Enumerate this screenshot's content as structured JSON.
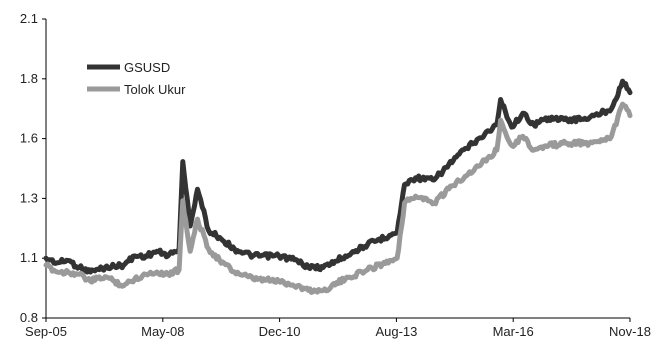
{
  "chart_data": {
    "type": "line",
    "title": "",
    "xlabel": "",
    "ylabel": "",
    "x_ticks": [
      "Sep-05",
      "May-08",
      "Dec-10",
      "Aug-13",
      "Mar-16",
      "Nov-18"
    ],
    "y_ticks": [
      "0.8",
      "1.1",
      "1.3",
      "1.6",
      "1.8",
      "2.1"
    ],
    "ylim": [
      0.8,
      2.1
    ],
    "xlim": [
      "2005-09",
      "2018-11"
    ],
    "grid": false,
    "legend_position": "top-left",
    "series": [
      {
        "name": "GSUSD",
        "color": "#333333",
        "points": [
          [
            "2005-09",
            1.06
          ],
          [
            "2005-12",
            1.04
          ],
          [
            "2006-03",
            1.05
          ],
          [
            "2006-06",
            1.02
          ],
          [
            "2006-09",
            1.0
          ],
          [
            "2007-01",
            1.02
          ],
          [
            "2007-06",
            1.03
          ],
          [
            "2007-09",
            1.07
          ],
          [
            "2007-12",
            1.07
          ],
          [
            "2008-03",
            1.09
          ],
          [
            "2008-06",
            1.07
          ],
          [
            "2008-09",
            1.1
          ],
          [
            "2008-10",
            1.48
          ],
          [
            "2008-12",
            1.2
          ],
          [
            "2009-02",
            1.36
          ],
          [
            "2009-05",
            1.18
          ],
          [
            "2009-08",
            1.15
          ],
          [
            "2009-12",
            1.1
          ],
          [
            "2010-05",
            1.07
          ],
          [
            "2010-12",
            1.07
          ],
          [
            "2011-05",
            1.05
          ],
          [
            "2011-08",
            1.02
          ],
          [
            "2011-12",
            1.02
          ],
          [
            "2012-06",
            1.07
          ],
          [
            "2012-12",
            1.12
          ],
          [
            "2013-06",
            1.16
          ],
          [
            "2013-08",
            1.17
          ],
          [
            "2013-10",
            1.38
          ],
          [
            "2014-01",
            1.41
          ],
          [
            "2014-06",
            1.4
          ],
          [
            "2014-12",
            1.5
          ],
          [
            "2015-06",
            1.58
          ],
          [
            "2015-11",
            1.64
          ],
          [
            "2015-12",
            1.75
          ],
          [
            "2016-03",
            1.63
          ],
          [
            "2016-06",
            1.69
          ],
          [
            "2016-09",
            1.64
          ],
          [
            "2017-01",
            1.67
          ],
          [
            "2017-06",
            1.66
          ],
          [
            "2017-12",
            1.67
          ],
          [
            "2018-06",
            1.71
          ],
          [
            "2018-09",
            1.83
          ],
          [
            "2018-11",
            1.78
          ]
        ]
      },
      {
        "name": "Tolok Ukur",
        "color": "#9a9a9a",
        "points": [
          [
            "2005-09",
            1.03
          ],
          [
            "2005-12",
            1.0
          ],
          [
            "2006-03",
            1.0
          ],
          [
            "2006-06",
            0.99
          ],
          [
            "2006-09",
            0.96
          ],
          [
            "2007-01",
            0.98
          ],
          [
            "2007-06",
            0.94
          ],
          [
            "2007-09",
            0.97
          ],
          [
            "2007-12",
            0.99
          ],
          [
            "2008-03",
            1.0
          ],
          [
            "2008-06",
            0.99
          ],
          [
            "2008-09",
            1.01
          ],
          [
            "2008-10",
            1.31
          ],
          [
            "2008-12",
            1.09
          ],
          [
            "2009-02",
            1.23
          ],
          [
            "2009-05",
            1.1
          ],
          [
            "2009-08",
            1.05
          ],
          [
            "2009-12",
            1.0
          ],
          [
            "2010-05",
            0.97
          ],
          [
            "2010-12",
            0.96
          ],
          [
            "2011-05",
            0.94
          ],
          [
            "2011-08",
            0.92
          ],
          [
            "2011-12",
            0.92
          ],
          [
            "2012-06",
            0.97
          ],
          [
            "2012-12",
            1.01
          ],
          [
            "2013-06",
            1.05
          ],
          [
            "2013-08",
            1.06
          ],
          [
            "2013-10",
            1.3
          ],
          [
            "2014-01",
            1.33
          ],
          [
            "2014-06",
            1.3
          ],
          [
            "2014-12",
            1.39
          ],
          [
            "2015-06",
            1.46
          ],
          [
            "2015-11",
            1.53
          ],
          [
            "2015-12",
            1.66
          ],
          [
            "2016-03",
            1.55
          ],
          [
            "2016-06",
            1.59
          ],
          [
            "2016-09",
            1.53
          ],
          [
            "2017-01",
            1.55
          ],
          [
            "2017-06",
            1.56
          ],
          [
            "2017-12",
            1.56
          ],
          [
            "2018-06",
            1.59
          ],
          [
            "2018-09",
            1.73
          ],
          [
            "2018-11",
            1.68
          ]
        ]
      }
    ]
  }
}
